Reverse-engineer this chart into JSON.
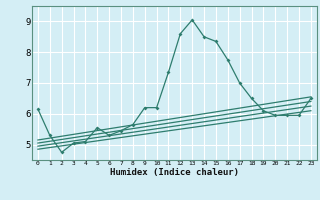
{
  "xlabel": "Humidex (Indice chaleur)",
  "background_color": "#d4eef5",
  "grid_color": "#ffffff",
  "line_color": "#2e7d6e",
  "xlim": [
    -0.5,
    23.5
  ],
  "ylim": [
    4.5,
    9.5
  ],
  "yticks": [
    5,
    6,
    7,
    8,
    9
  ],
  "xticks": [
    0,
    1,
    2,
    3,
    4,
    5,
    6,
    7,
    8,
    9,
    10,
    11,
    12,
    13,
    14,
    15,
    16,
    17,
    18,
    19,
    20,
    21,
    22,
    23
  ],
  "series": [
    [
      0,
      6.15
    ],
    [
      1,
      5.3
    ],
    [
      2,
      4.75
    ],
    [
      3,
      5.05
    ],
    [
      4,
      5.1
    ],
    [
      5,
      5.55
    ],
    [
      6,
      5.3
    ],
    [
      7,
      5.45
    ],
    [
      8,
      5.65
    ],
    [
      9,
      6.2
    ],
    [
      10,
      6.2
    ],
    [
      11,
      7.35
    ],
    [
      12,
      8.6
    ],
    [
      13,
      9.05
    ],
    [
      14,
      8.5
    ],
    [
      15,
      8.35
    ],
    [
      16,
      7.75
    ],
    [
      17,
      7.0
    ],
    [
      18,
      6.5
    ],
    [
      19,
      6.1
    ],
    [
      20,
      5.95
    ],
    [
      21,
      5.95
    ],
    [
      22,
      5.95
    ],
    [
      23,
      6.5
    ]
  ],
  "diag_lines": [
    [
      [
        0,
        5.15
      ],
      [
        23,
        6.55
      ]
    ],
    [
      [
        0,
        5.05
      ],
      [
        23,
        6.4
      ]
    ],
    [
      [
        0,
        4.95
      ],
      [
        23,
        6.25
      ]
    ],
    [
      [
        0,
        4.85
      ],
      [
        23,
        6.1
      ]
    ]
  ]
}
